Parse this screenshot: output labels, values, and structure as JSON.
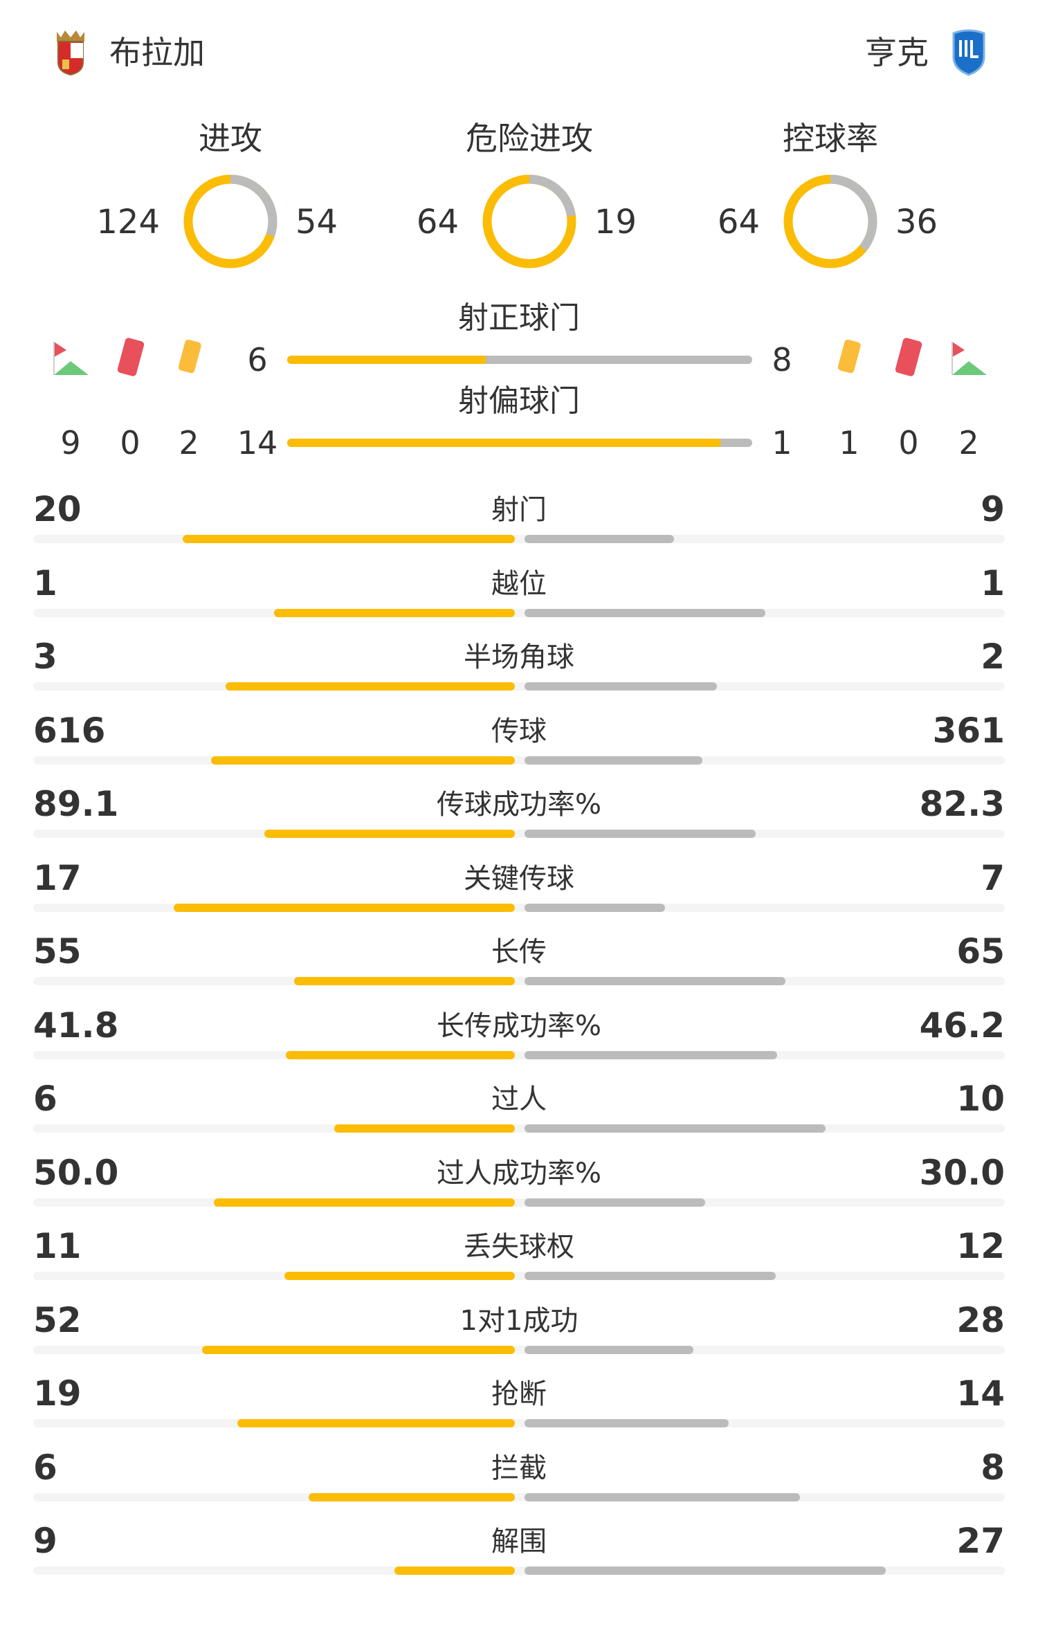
{
  "colors": {
    "home": "#FBBC05",
    "away": "#BBBBBB",
    "track": "#F4F4F4",
    "text": "#333333"
  },
  "header": {
    "home_team": "布拉加",
    "away_team": "亨克",
    "home_logo": "braga-crest",
    "away_logo": "genk-crest"
  },
  "donuts": [
    {
      "label": "进攻",
      "home": 124,
      "away": 54
    },
    {
      "label": "危险进攻",
      "home": 64,
      "away": 19
    },
    {
      "label": "控球率",
      "home": 64,
      "away": 36
    }
  ],
  "shots_on_target": {
    "label": "射正球门",
    "home": 6,
    "away": 8
  },
  "shots_off_target": {
    "label": "射偏球门",
    "home": 14,
    "away": 1
  },
  "events": {
    "home": {
      "corners": 9,
      "red_cards": 0,
      "yellow_cards": 2
    },
    "away": {
      "yellow_cards": 1,
      "red_cards": 0,
      "corners": 2
    }
  },
  "stats": [
    {
      "label": "射门",
      "home": "20",
      "away": "9"
    },
    {
      "label": "越位",
      "home": "1",
      "away": "1"
    },
    {
      "label": "半场角球",
      "home": "3",
      "away": "2"
    },
    {
      "label": "传球",
      "home": "616",
      "away": "361"
    },
    {
      "label": "传球成功率%",
      "home": "89.1",
      "away": "82.3"
    },
    {
      "label": "关键传球",
      "home": "17",
      "away": "7"
    },
    {
      "label": "长传",
      "home": "55",
      "away": "65"
    },
    {
      "label": "长传成功率%",
      "home": "41.8",
      "away": "46.2"
    },
    {
      "label": "过人",
      "home": "6",
      "away": "10"
    },
    {
      "label": "过人成功率%",
      "home": "50.0",
      "away": "30.0"
    },
    {
      "label": "丢失球权",
      "home": "11",
      "away": "12"
    },
    {
      "label": "1对1成功",
      "home": "52",
      "away": "28"
    },
    {
      "label": "抢断",
      "home": "19",
      "away": "14"
    },
    {
      "label": "拦截",
      "home": "6",
      "away": "8"
    },
    {
      "label": "解围",
      "home": "9",
      "away": "27"
    }
  ]
}
